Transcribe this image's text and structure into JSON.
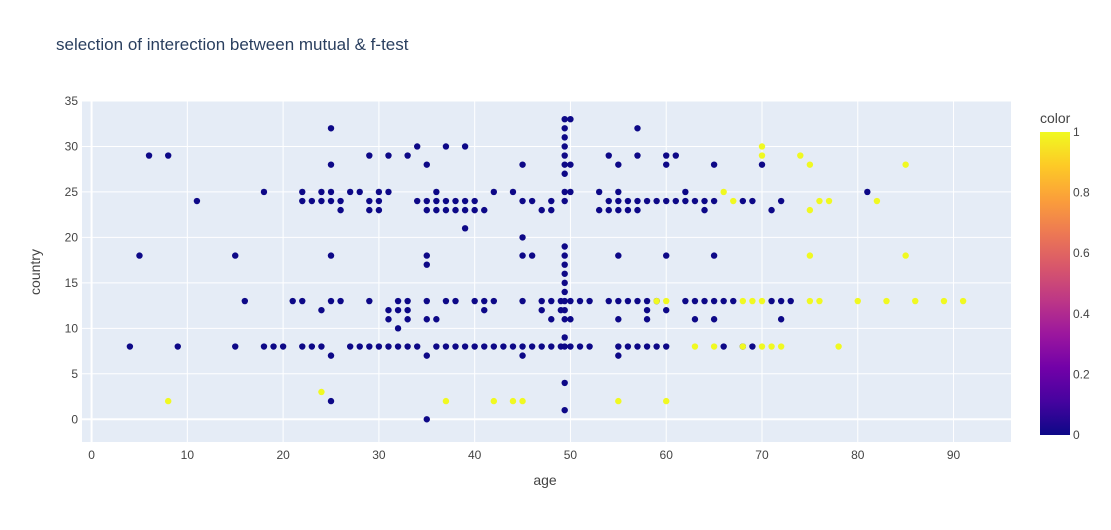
{
  "colors": {
    "plot_bg": "#e5ecf6",
    "grid": "#ffffff",
    "text": "#444444",
    "title": "#2a3f5f",
    "point_low": "#0d0887",
    "point_high": "#f0f921"
  },
  "chart_data": {
    "type": "scatter",
    "title": "selection of interection between mutual & f-test",
    "xlabel": "age",
    "ylabel": "country",
    "xlim": [
      -1,
      96
    ],
    "ylim": [
      -2.5,
      35
    ],
    "xticks": [
      0,
      10,
      20,
      30,
      40,
      50,
      60,
      70,
      80,
      90
    ],
    "yticks": [
      0,
      5,
      10,
      15,
      20,
      25,
      30,
      35
    ],
    "grid": true,
    "colorbar": {
      "title": "color",
      "range": [
        0,
        1
      ],
      "ticks": [
        0,
        0.2,
        0.4,
        0.6,
        0.8,
        1
      ],
      "tick_labels": [
        "0",
        "0.2",
        "0.4",
        "0.6",
        "0.8",
        "1"
      ],
      "colorscale": [
        "#0d0887",
        "#46039f",
        "#7201a8",
        "#9c179e",
        "#bd3786",
        "#d8576b",
        "#ed7953",
        "#fb9f3a",
        "#fdca26",
        "#f0f921"
      ]
    },
    "series": [
      {
        "color_value": 0,
        "points": [
          [
            4,
            8
          ],
          [
            5,
            18
          ],
          [
            6,
            29
          ],
          [
            8,
            29
          ],
          [
            9,
            8
          ],
          [
            11,
            24
          ],
          [
            15,
            18
          ],
          [
            15,
            8
          ],
          [
            16,
            13
          ],
          [
            18,
            25
          ],
          [
            18,
            8
          ],
          [
            19,
            8
          ],
          [
            20,
            8
          ],
          [
            21,
            13
          ],
          [
            22,
            25
          ],
          [
            22,
            24
          ],
          [
            22,
            13
          ],
          [
            22,
            8
          ],
          [
            23,
            24
          ],
          [
            23,
            8
          ],
          [
            24,
            25
          ],
          [
            24,
            24
          ],
          [
            24,
            12
          ],
          [
            24,
            8
          ],
          [
            25,
            32
          ],
          [
            25,
            28
          ],
          [
            25,
            25
          ],
          [
            25,
            24
          ],
          [
            25,
            18
          ],
          [
            25,
            13
          ],
          [
            25,
            7
          ],
          [
            25,
            2
          ],
          [
            26,
            24
          ],
          [
            26,
            23
          ],
          [
            26,
            13
          ],
          [
            27,
            25
          ],
          [
            27,
            8
          ],
          [
            28,
            25
          ],
          [
            28,
            8
          ],
          [
            29,
            29
          ],
          [
            29,
            24
          ],
          [
            29,
            23
          ],
          [
            29,
            13
          ],
          [
            29,
            8
          ],
          [
            30,
            25
          ],
          [
            30,
            24
          ],
          [
            30,
            23
          ],
          [
            30,
            8
          ],
          [
            31,
            29
          ],
          [
            31,
            25
          ],
          [
            31,
            12
          ],
          [
            31,
            11
          ],
          [
            31,
            8
          ],
          [
            32,
            13
          ],
          [
            32,
            12
          ],
          [
            32,
            10
          ],
          [
            32,
            8
          ],
          [
            33,
            29
          ],
          [
            33,
            13
          ],
          [
            33,
            12
          ],
          [
            33,
            11
          ],
          [
            33,
            8
          ],
          [
            34,
            30
          ],
          [
            34,
            24
          ],
          [
            34,
            8
          ],
          [
            35,
            28
          ],
          [
            35,
            24
          ],
          [
            35,
            23
          ],
          [
            35,
            18
          ],
          [
            35,
            17
          ],
          [
            35,
            13
          ],
          [
            35,
            11
          ],
          [
            35,
            7
          ],
          [
            35,
            0
          ],
          [
            36,
            25
          ],
          [
            36,
            24
          ],
          [
            36,
            23
          ],
          [
            36,
            11
          ],
          [
            36,
            8
          ],
          [
            37,
            30
          ],
          [
            37,
            24
          ],
          [
            37,
            23
          ],
          [
            37,
            13
          ],
          [
            37,
            8
          ],
          [
            38,
            24
          ],
          [
            38,
            23
          ],
          [
            38,
            13
          ],
          [
            38,
            8
          ],
          [
            39,
            30
          ],
          [
            39,
            24
          ],
          [
            39,
            23
          ],
          [
            39,
            21
          ],
          [
            39,
            8
          ],
          [
            40,
            24
          ],
          [
            40,
            23
          ],
          [
            40,
            13
          ],
          [
            40,
            8
          ],
          [
            41,
            23
          ],
          [
            41,
            13
          ],
          [
            41,
            12
          ],
          [
            41,
            8
          ],
          [
            42,
            25
          ],
          [
            42,
            13
          ],
          [
            42,
            8
          ],
          [
            43,
            8
          ],
          [
            44,
            25
          ],
          [
            44,
            8
          ],
          [
            45,
            28
          ],
          [
            45,
            24
          ],
          [
            45,
            20
          ],
          [
            45,
            18
          ],
          [
            45,
            13
          ],
          [
            45,
            8
          ],
          [
            45,
            7
          ],
          [
            46,
            24
          ],
          [
            46,
            18
          ],
          [
            46,
            8
          ],
          [
            47,
            23
          ],
          [
            47,
            13
          ],
          [
            47,
            12
          ],
          [
            47,
            8
          ],
          [
            48,
            24
          ],
          [
            48,
            23
          ],
          [
            48,
            13
          ],
          [
            48,
            11
          ],
          [
            48,
            8
          ],
          [
            49,
            13
          ],
          [
            49,
            12
          ],
          [
            49,
            8
          ],
          [
            49.4,
            33
          ],
          [
            49.4,
            32
          ],
          [
            49.4,
            31
          ],
          [
            49.4,
            30
          ],
          [
            49.4,
            29
          ],
          [
            49.4,
            28
          ],
          [
            49.4,
            27
          ],
          [
            49.4,
            25
          ],
          [
            49.4,
            24
          ],
          [
            49.4,
            19
          ],
          [
            49.4,
            18
          ],
          [
            49.4,
            17
          ],
          [
            49.4,
            16
          ],
          [
            49.4,
            15
          ],
          [
            49.4,
            14
          ],
          [
            49.4,
            13
          ],
          [
            49.4,
            12
          ],
          [
            49.4,
            11
          ],
          [
            49.4,
            9
          ],
          [
            49.4,
            8
          ],
          [
            49.4,
            4
          ],
          [
            49.4,
            1
          ],
          [
            50,
            33
          ],
          [
            50,
            28
          ],
          [
            50,
            25
          ],
          [
            50,
            13
          ],
          [
            50,
            11
          ],
          [
            50,
            8
          ],
          [
            51,
            13
          ],
          [
            51,
            8
          ],
          [
            52,
            13
          ],
          [
            52,
            8
          ],
          [
            53,
            25
          ],
          [
            53,
            23
          ],
          [
            54,
            29
          ],
          [
            54,
            24
          ],
          [
            54,
            23
          ],
          [
            54,
            13
          ],
          [
            55,
            28
          ],
          [
            55,
            25
          ],
          [
            55,
            24
          ],
          [
            55,
            23
          ],
          [
            55,
            18
          ],
          [
            55,
            13
          ],
          [
            55,
            11
          ],
          [
            55,
            8
          ],
          [
            55,
            7
          ],
          [
            56,
            24
          ],
          [
            56,
            23
          ],
          [
            56,
            13
          ],
          [
            56,
            8
          ],
          [
            57,
            32
          ],
          [
            57,
            29
          ],
          [
            57,
            24
          ],
          [
            57,
            23
          ],
          [
            57,
            13
          ],
          [
            57,
            8
          ],
          [
            58,
            24
          ],
          [
            58,
            13
          ],
          [
            58,
            12
          ],
          [
            58,
            11
          ],
          [
            58,
            8
          ],
          [
            59,
            24
          ],
          [
            59,
            13
          ],
          [
            59,
            8
          ],
          [
            60,
            29
          ],
          [
            60,
            28
          ],
          [
            60,
            24
          ],
          [
            60,
            18
          ],
          [
            60,
            12
          ],
          [
            60,
            8
          ],
          [
            61,
            29
          ],
          [
            61,
            24
          ],
          [
            62,
            25
          ],
          [
            62,
            24
          ],
          [
            62,
            13
          ],
          [
            63,
            24
          ],
          [
            63,
            13
          ],
          [
            63,
            11
          ],
          [
            64,
            24
          ],
          [
            64,
            23
          ],
          [
            64,
            13
          ],
          [
            65,
            28
          ],
          [
            65,
            24
          ],
          [
            65,
            18
          ],
          [
            65,
            13
          ],
          [
            65,
            11
          ],
          [
            66,
            13
          ],
          [
            66,
            8
          ],
          [
            67,
            13
          ],
          [
            68,
            24
          ],
          [
            68,
            8
          ],
          [
            69,
            24
          ],
          [
            69,
            8
          ],
          [
            70,
            28
          ],
          [
            71,
            23
          ],
          [
            71,
            13
          ],
          [
            72,
            24
          ],
          [
            72,
            13
          ],
          [
            72,
            11
          ],
          [
            73,
            13
          ],
          [
            81,
            25
          ]
        ]
      },
      {
        "color_value": 1,
        "points": [
          [
            8,
            2
          ],
          [
            24,
            3
          ],
          [
            37,
            2
          ],
          [
            42,
            2
          ],
          [
            44,
            2
          ],
          [
            45,
            2
          ],
          [
            55,
            2
          ],
          [
            60,
            2
          ],
          [
            59,
            13
          ],
          [
            60,
            13
          ],
          [
            63,
            8
          ],
          [
            65,
            8
          ],
          [
            66,
            25
          ],
          [
            67,
            24
          ],
          [
            68,
            13
          ],
          [
            68,
            8
          ],
          [
            69,
            13
          ],
          [
            70,
            30
          ],
          [
            70,
            29
          ],
          [
            70,
            13
          ],
          [
            70,
            8
          ],
          [
            71,
            8
          ],
          [
            72,
            8
          ],
          [
            74,
            29
          ],
          [
            75,
            28
          ],
          [
            75,
            23
          ],
          [
            75,
            18
          ],
          [
            75,
            13
          ],
          [
            76,
            24
          ],
          [
            76,
            13
          ],
          [
            77,
            24
          ],
          [
            78,
            8
          ],
          [
            80,
            13
          ],
          [
            82,
            24
          ],
          [
            83,
            13
          ],
          [
            85,
            28
          ],
          [
            85,
            18
          ],
          [
            86,
            13
          ],
          [
            89,
            13
          ],
          [
            91,
            13
          ]
        ]
      }
    ]
  }
}
